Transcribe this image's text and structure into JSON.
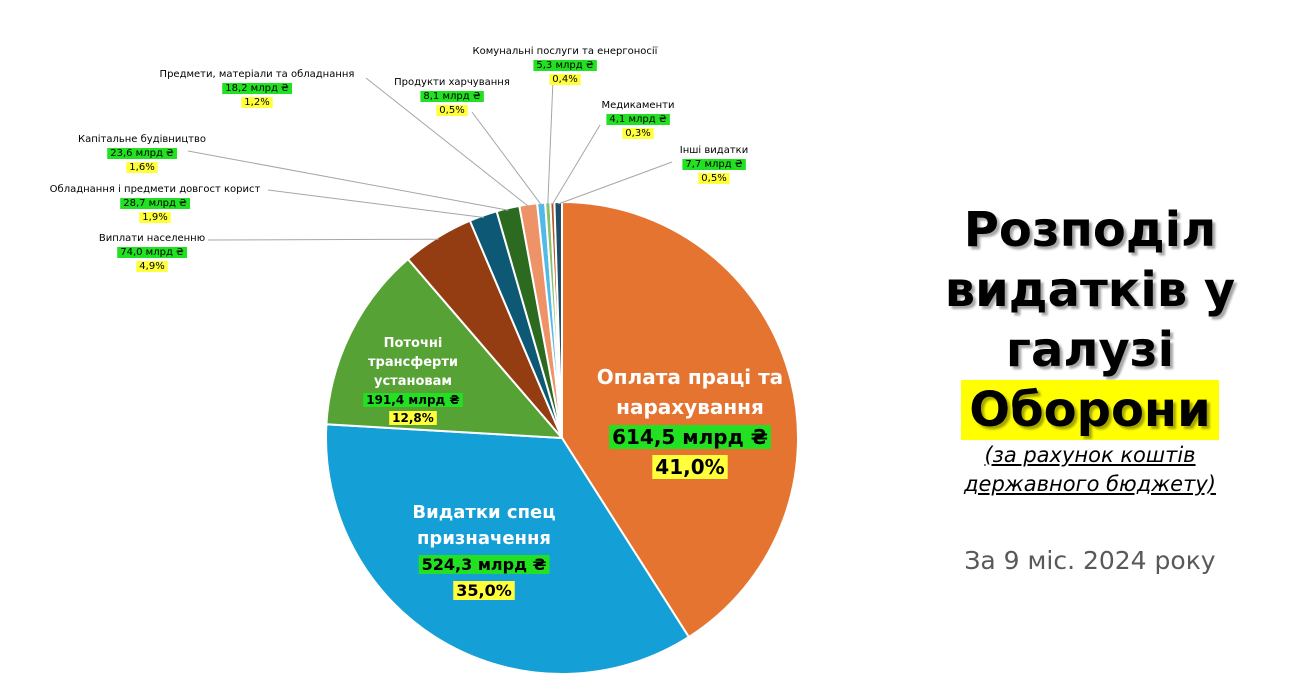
{
  "chart_data": {
    "type": "pie",
    "title": [
      "Розподіл",
      "видатків у",
      "галузі",
      "Оборони"
    ],
    "subtitle": [
      "(за рахунок коштів",
      "державного бюджету)"
    ],
    "period": "За 9 міс. 2024 року",
    "slices": [
      {
        "name": "Оплата праці та нарахування",
        "value_label": "614,5 млрд ₴",
        "percent_label": "41,0%",
        "value": 614.5,
        "percent": 41.0,
        "color": "#e67431"
      },
      {
        "name": "Видатки спец призначення",
        "value_label": "524,3 млрд ₴",
        "percent_label": "35,0%",
        "value": 524.3,
        "percent": 35.0,
        "color": "#149fd6"
      },
      {
        "name": "Поточні трансферти установам",
        "value_label": "191,4 млрд ₴",
        "percent_label": "12,8%",
        "value": 191.4,
        "percent": 12.8,
        "color": "#56a235"
      },
      {
        "name": "Виплати населенню",
        "value_label": "74,0 млрд ₴",
        "percent_label": "4,9%",
        "value": 74.0,
        "percent": 4.9,
        "color": "#953d12"
      },
      {
        "name": "Обладнання і предмети довгост корист",
        "value_label": "28,7 млрд ₴",
        "percent_label": "1,9%",
        "value": 28.7,
        "percent": 1.9,
        "color": "#0d5875"
      },
      {
        "name": "Капітальне будівництво",
        "value_label": "23,6 млрд ₴",
        "percent_label": "1,6%",
        "value": 23.6,
        "percent": 1.6,
        "color": "#2c6a1f"
      },
      {
        "name": "Предмети, матеріали та обладнання",
        "value_label": "18,2 млрд ₴",
        "percent_label": "1,2%",
        "value": 18.2,
        "percent": 1.2,
        "color": "#ee9267"
      },
      {
        "name": "Продукти харчування",
        "value_label": "8,1 млрд ₴",
        "percent_label": "0,5%",
        "value": 8.1,
        "percent": 0.5,
        "color": "#52b9e8"
      },
      {
        "name": "Комунальні послуги та енергоносії",
        "value_label": "5,3 млрд ₴",
        "percent_label": "0,4%",
        "value": 5.3,
        "percent": 0.4,
        "color": "#85c26a"
      },
      {
        "name": "Медикаменти",
        "value_label": "4,1 млрд ₴",
        "percent_label": "0,3%",
        "value": 4.1,
        "percent": 0.3,
        "color": "#b3542a"
      },
      {
        "name": "Інші видатки",
        "value_label": "7,7 млрд ₴",
        "percent_label": "0,5%",
        "value": 7.7,
        "percent": 0.5,
        "color": "#1f4e68"
      }
    ],
    "label_highlight_colors": {
      "value": "#22e022",
      "percent": "#ffff3c"
    }
  }
}
